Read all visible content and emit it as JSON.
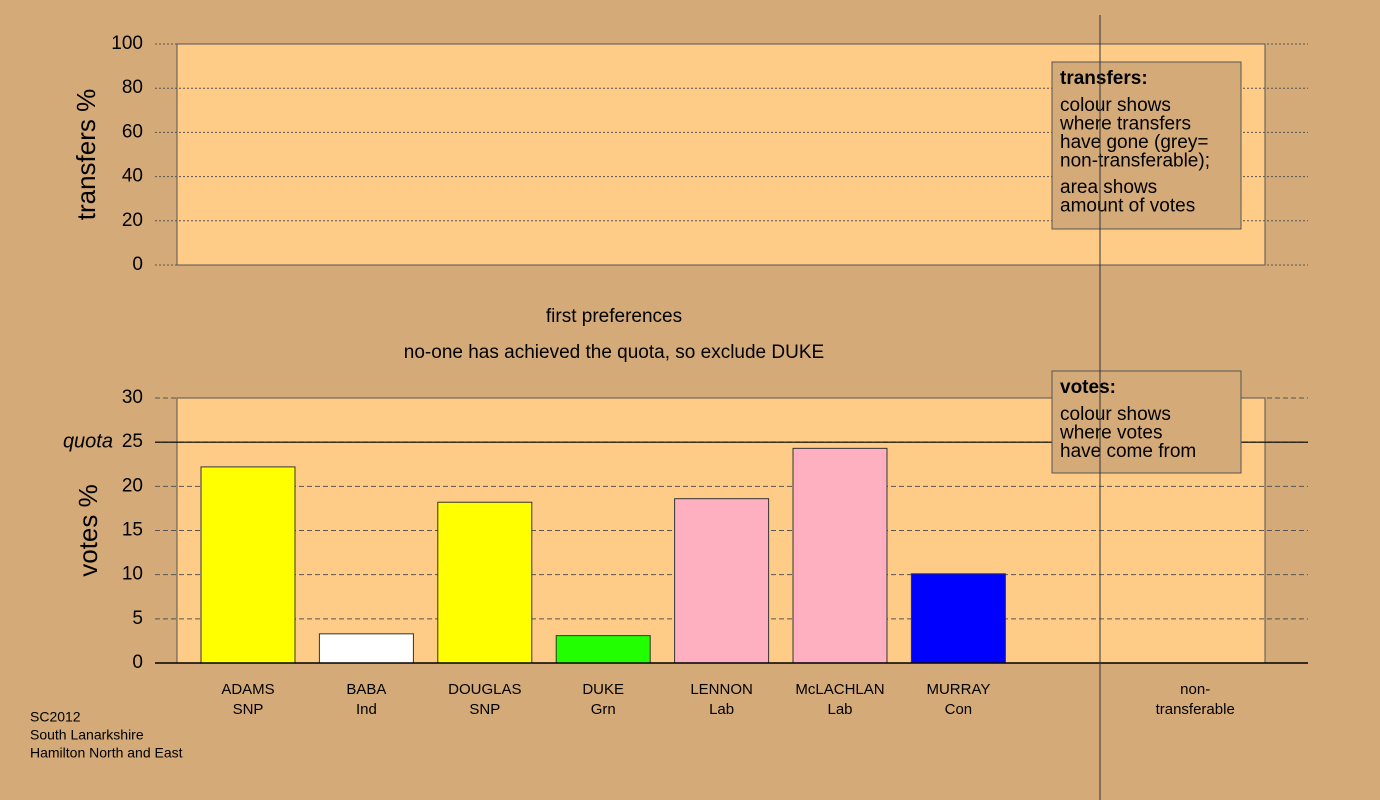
{
  "chart_data": [
    {
      "type": "bar",
      "ylabel": "transfers %",
      "ylim": [
        0,
        100
      ],
      "yticks": [
        0,
        20,
        40,
        60,
        80,
        100
      ],
      "grid": true,
      "legend": {
        "title": "transfers:",
        "paragraphs": [
          [
            "colour shows",
            "where transfers",
            "have gone (grey=",
            "non-transferable);"
          ],
          [
            "area shows",
            "amount of votes"
          ]
        ]
      }
    },
    {
      "type": "bar",
      "title": "first preferences",
      "subtitle": "no-one has achieved the quota, so exclude DUKE",
      "ylabel": "votes %",
      "ylim": [
        0,
        30
      ],
      "yticks": [
        0,
        5,
        10,
        15,
        20,
        25,
        30
      ],
      "grid": true,
      "categories": [
        "ADAMS",
        "BABA",
        "DOUGLAS",
        "DUKE",
        "LENNON",
        "McLACHLAN",
        "MURRAY",
        null,
        "non-"
      ],
      "parties": [
        "SNP",
        "Ind",
        "SNP",
        "Grn",
        "Lab",
        "Lab",
        "Con",
        null,
        "transferable"
      ],
      "values": [
        22.2,
        3.3,
        18.2,
        3.1,
        18.6,
        24.3,
        10.1,
        null,
        null
      ],
      "colors": [
        "#ffff00",
        "#ffffff",
        "#ffff00",
        "#22ff00",
        "#ffb0c0",
        "#ffb0c0",
        "#0000ff",
        null,
        null
      ],
      "quota": {
        "label": "quota",
        "value": 25
      },
      "legend": {
        "title": "votes:",
        "paragraphs": [
          [
            "colour shows",
            "where votes",
            "have come from"
          ]
        ]
      }
    }
  ],
  "footer": [
    "SC2012",
    "South Lanarkshire",
    "Hamilton North and East"
  ]
}
